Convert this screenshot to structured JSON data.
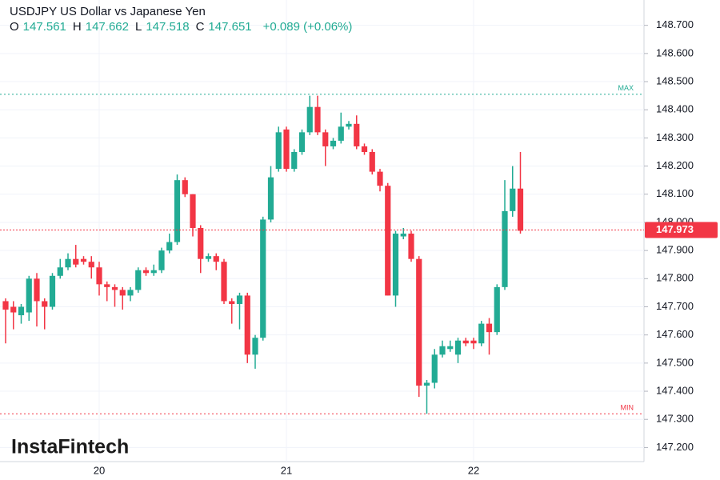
{
  "chart_data": {
    "type": "candlestick",
    "title": "USDJPY US Dollar vs Japanese Yen",
    "ohlc_legend": [
      {
        "key": "O",
        "value": "147.561"
      },
      {
        "key": "H",
        "value": "147.662"
      },
      {
        "key": "L",
        "value": "147.518"
      },
      {
        "key": "C",
        "value": "147.651"
      }
    ],
    "change": "+0.089 (+0.06%)",
    "watermark": "InstaFintech",
    "categories": [
      null,
      null,
      null,
      null,
      null,
      null,
      null,
      null,
      null,
      null,
      null,
      null,
      "20",
      null,
      null,
      null,
      null,
      null,
      null,
      null,
      null,
      null,
      null,
      null,
      null,
      null,
      null,
      null,
      null,
      null,
      null,
      null,
      null,
      null,
      null,
      null,
      "21",
      null,
      null,
      null,
      null,
      null,
      null,
      null,
      null,
      null,
      null,
      null,
      null,
      null,
      null,
      null,
      null,
      null,
      null,
      null,
      null,
      null,
      null,
      null,
      "22",
      null,
      null,
      null,
      null,
      null,
      null
    ],
    "open": [
      147.72,
      147.7,
      147.67,
      147.68,
      147.8,
      147.72,
      147.7,
      147.81,
      147.84,
      147.87,
      147.87,
      147.86,
      147.84,
      147.78,
      147.77,
      147.76,
      147.74,
      147.76,
      147.83,
      147.82,
      147.83,
      147.9,
      147.93,
      148.15,
      148.1,
      147.98,
      147.87,
      147.88,
      147.86,
      147.72,
      147.71,
      147.74,
      147.53,
      147.59,
      148.01,
      148.19,
      148.33,
      148.19,
      148.25,
      148.32,
      148.41,
      148.32,
      148.27,
      148.29,
      148.34,
      148.35,
      148.27,
      148.25,
      148.18,
      148.13,
      147.74,
      147.95,
      147.96,
      147.87,
      147.42,
      147.43,
      147.53,
      147.55,
      147.53,
      147.58,
      147.58,
      147.57,
      147.64,
      147.61,
      147.77,
      148.04,
      148.12
    ],
    "high": [
      147.73,
      147.72,
      147.71,
      147.81,
      147.82,
      147.73,
      147.82,
      147.87,
      147.89,
      147.92,
      147.88,
      147.88,
      147.86,
      147.79,
      147.78,
      147.77,
      147.77,
      147.84,
      147.84,
      147.85,
      147.91,
      147.96,
      148.17,
      148.16,
      148.1,
      147.99,
      147.89,
      147.89,
      147.87,
      147.73,
      147.75,
      147.75,
      147.6,
      148.02,
      148.2,
      148.34,
      148.34,
      148.26,
      148.33,
      148.45,
      148.45,
      148.33,
      148.3,
      148.39,
      148.36,
      148.38,
      148.28,
      148.26,
      148.19,
      148.14,
      147.97,
      147.98,
      147.97,
      147.88,
      147.44,
      147.55,
      147.58,
      147.58,
      147.59,
      147.59,
      147.59,
      147.65,
      147.66,
      147.78,
      148.15,
      148.2,
      148.25
    ],
    "low": [
      147.57,
      147.62,
      147.64,
      147.65,
      147.63,
      147.62,
      147.69,
      147.8,
      147.83,
      147.84,
      147.85,
      147.8,
      147.74,
      147.72,
      147.7,
      147.69,
      147.72,
      147.75,
      147.81,
      147.81,
      147.82,
      147.89,
      147.92,
      148.09,
      147.95,
      147.82,
      147.86,
      147.83,
      147.71,
      147.64,
      147.62,
      147.5,
      147.48,
      147.58,
      148.0,
      148.18,
      148.18,
      148.18,
      148.24,
      148.31,
      148.31,
      148.2,
      148.26,
      148.28,
      148.33,
      148.26,
      148.24,
      148.17,
      148.11,
      147.74,
      147.7,
      147.94,
      147.86,
      147.38,
      147.32,
      147.41,
      147.52,
      147.54,
      147.5,
      147.56,
      147.55,
      147.56,
      147.53,
      147.6,
      147.76,
      148.02,
      147.96
    ],
    "close": [
      147.69,
      147.68,
      147.7,
      147.8,
      147.72,
      147.7,
      147.81,
      147.84,
      147.87,
      147.85,
      147.86,
      147.84,
      147.78,
      147.77,
      147.76,
      147.74,
      147.76,
      147.83,
      147.82,
      147.83,
      147.9,
      147.93,
      148.15,
      148.1,
      147.98,
      147.87,
      147.88,
      147.86,
      147.72,
      147.71,
      147.74,
      147.53,
      147.59,
      148.01,
      148.16,
      148.32,
      148.19,
      148.25,
      148.32,
      148.41,
      148.32,
      148.27,
      148.29,
      148.34,
      148.35,
      148.27,
      148.25,
      148.18,
      148.13,
      147.74,
      147.96,
      147.96,
      147.87,
      147.42,
      147.43,
      147.53,
      147.56,
      147.56,
      147.58,
      147.57,
      147.57,
      147.64,
      147.61,
      147.77,
      148.04,
      148.12,
      147.97
    ],
    "up_color": "#22ab94",
    "down_color": "#f23645",
    "ylim": [
      147.15,
      148.79
    ],
    "yticks": [
      {
        "value": 147.2,
        "label": "147.200"
      },
      {
        "value": 147.3,
        "label": "147.300"
      },
      {
        "value": 147.4,
        "label": "147.400"
      },
      {
        "value": 147.5,
        "label": "147.500"
      },
      {
        "value": 147.6,
        "label": "147.600"
      },
      {
        "value": 147.7,
        "label": "147.700"
      },
      {
        "value": 147.8,
        "label": "147.800"
      },
      {
        "value": 147.9,
        "label": "147.900"
      },
      {
        "value": 148.0,
        "label": "148.000"
      },
      {
        "value": 148.1,
        "label": "148.100"
      },
      {
        "value": 148.2,
        "label": "148.200"
      },
      {
        "value": 148.3,
        "label": "148.300"
      },
      {
        "value": 148.4,
        "label": "148.400"
      },
      {
        "value": 148.5,
        "label": "148.500"
      },
      {
        "value": 148.6,
        "label": "148.600"
      },
      {
        "value": 148.7,
        "label": "148.700"
      }
    ],
    "grid": true,
    "last_price": 147.973,
    "max_line": {
      "value": 148.455,
      "label": "MAX"
    },
    "min_line": {
      "value": 147.32,
      "label": "MIN"
    }
  }
}
